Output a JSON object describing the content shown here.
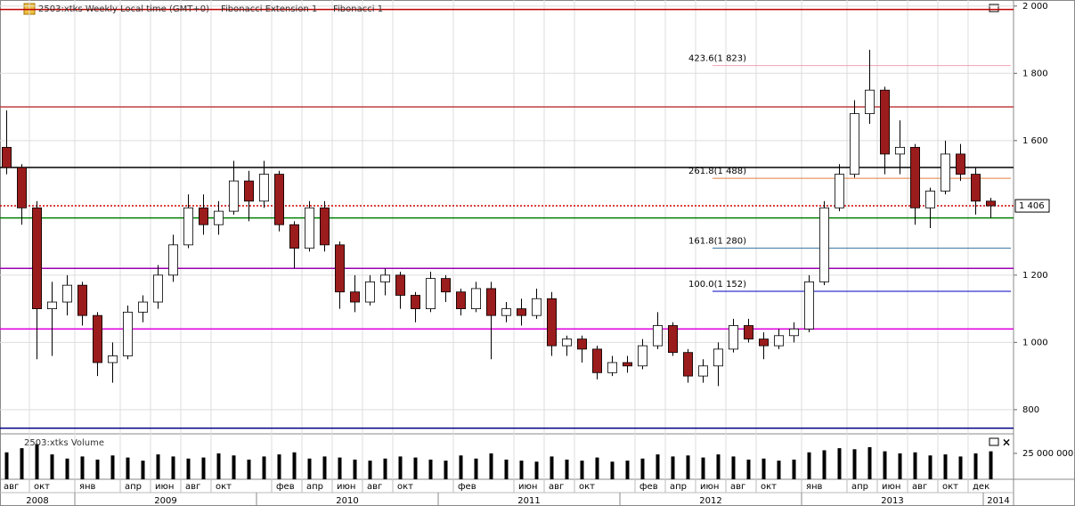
{
  "header": {
    "title": "2503:xtks Weekly Local time (GMT+0)",
    "menus": [
      "Fibonacci Extension 1",
      "Fibonacci 1"
    ]
  },
  "chart_data": {
    "type": "candlestick",
    "x": [
      "2008-08",
      "2008-09",
      "2008-10",
      "2008-11",
      "2008-12",
      "2009-01",
      "2009-02",
      "2009-03",
      "2009-04",
      "2009-05",
      "2009-06",
      "2009-07",
      "2009-08",
      "2009-09",
      "2009-10",
      "2009-11",
      "2009-12",
      "2010-01",
      "2010-02",
      "2010-03",
      "2010-04",
      "2010-05",
      "2010-06",
      "2010-07",
      "2010-08",
      "2010-09",
      "2010-10",
      "2010-11",
      "2010-12",
      "2011-01",
      "2011-02",
      "2011-03",
      "2011-04",
      "2011-05",
      "2011-06",
      "2011-07",
      "2011-08",
      "2011-09",
      "2011-10",
      "2011-11",
      "2011-12",
      "2012-01",
      "2012-02",
      "2012-03",
      "2012-04",
      "2012-05",
      "2012-06",
      "2012-07",
      "2012-08",
      "2012-09",
      "2012-10",
      "2012-11",
      "2012-12",
      "2013-01",
      "2013-02",
      "2013-03",
      "2013-04",
      "2013-05",
      "2013-06",
      "2013-07",
      "2013-08",
      "2013-09",
      "2013-10",
      "2013-11",
      "2013-12",
      "2014-01"
    ],
    "open": [
      1580,
      1520,
      1400,
      1100,
      1120,
      1170,
      1080,
      940,
      960,
      1090,
      1120,
      1200,
      1290,
      1400,
      1350,
      1390,
      1480,
      1420,
      1500,
      1350,
      1280,
      1400,
      1290,
      1150,
      1120,
      1180,
      1200,
      1140,
      1100,
      1190,
      1150,
      1100,
      1160,
      1080,
      1100,
      1080,
      1130,
      990,
      1010,
      980,
      910,
      940,
      930,
      990,
      1050,
      970,
      900,
      930,
      980,
      1050,
      1010,
      990,
      1020,
      1040,
      1180,
      1400,
      1500,
      1680,
      1750,
      1560,
      1580,
      1400,
      1450,
      1560,
      1500,
      1420
    ],
    "high": [
      1690,
      1530,
      1420,
      1180,
      1200,
      1180,
      1090,
      1000,
      1110,
      1140,
      1230,
      1320,
      1440,
      1440,
      1420,
      1540,
      1510,
      1540,
      1510,
      1360,
      1420,
      1420,
      1300,
      1200,
      1200,
      1220,
      1210,
      1150,
      1210,
      1200,
      1160,
      1180,
      1180,
      1120,
      1130,
      1160,
      1150,
      1020,
      1020,
      990,
      960,
      960,
      1010,
      1090,
      1060,
      980,
      950,
      1000,
      1070,
      1070,
      1030,
      1040,
      1060,
      1200,
      1420,
      1530,
      1720,
      1870,
      1760,
      1660,
      1590,
      1460,
      1600,
      1590,
      1520,
      1430
    ],
    "low": [
      1500,
      1350,
      950,
      960,
      1080,
      1050,
      900,
      880,
      950,
      1060,
      1100,
      1180,
      1280,
      1320,
      1320,
      1380,
      1360,
      1400,
      1330,
      1220,
      1270,
      1270,
      1100,
      1090,
      1110,
      1140,
      1100,
      1060,
      1090,
      1120,
      1080,
      1090,
      950,
      1060,
      1050,
      1070,
      960,
      960,
      940,
      890,
      900,
      910,
      920,
      980,
      960,
      880,
      880,
      870,
      970,
      1000,
      950,
      980,
      1000,
      1030,
      1170,
      1390,
      1490,
      1650,
      1500,
      1500,
      1350,
      1340,
      1440,
      1480,
      1380,
      1370
    ],
    "close": [
      1520,
      1400,
      1100,
      1120,
      1170,
      1080,
      940,
      960,
      1090,
      1120,
      1200,
      1290,
      1400,
      1350,
      1390,
      1480,
      1420,
      1500,
      1350,
      1280,
      1400,
      1290,
      1150,
      1120,
      1180,
      1200,
      1140,
      1100,
      1190,
      1150,
      1100,
      1160,
      1080,
      1100,
      1080,
      1130,
      990,
      1010,
      980,
      910,
      940,
      930,
      990,
      1050,
      970,
      900,
      930,
      980,
      1050,
      1010,
      990,
      1020,
      1040,
      1180,
      1400,
      1500,
      1680,
      1750,
      1560,
      1580,
      1400,
      1450,
      1560,
      1500,
      1420,
      1406
    ],
    "up_color": "#ffffff",
    "down_color": "#9b1c1c",
    "xlim": [
      "2008-08",
      "2014-03"
    ],
    "xticks": [
      {
        "value": "2008-08",
        "label": "авг"
      },
      {
        "value": "2008-10",
        "label": "окт"
      },
      {
        "value": "2009-01",
        "label": "янв"
      },
      {
        "value": "2009-04",
        "label": "апр"
      },
      {
        "value": "2009-06",
        "label": "июн"
      },
      {
        "value": "2009-08",
        "label": "авг"
      },
      {
        "value": "2009-10",
        "label": "окт"
      },
      {
        "value": "2010-02",
        "label": "фев"
      },
      {
        "value": "2010-04",
        "label": "апр"
      },
      {
        "value": "2010-06",
        "label": "июн"
      },
      {
        "value": "2010-08",
        "label": "авг"
      },
      {
        "value": "2010-10",
        "label": "окт"
      },
      {
        "value": "2011-02",
        "label": "фев"
      },
      {
        "value": "2011-06",
        "label": "июн"
      },
      {
        "value": "2011-08",
        "label": "авг"
      },
      {
        "value": "2011-10",
        "label": "окт"
      },
      {
        "value": "2012-02",
        "label": "фев"
      },
      {
        "value": "2012-04",
        "label": "апр"
      },
      {
        "value": "2012-06",
        "label": "июн"
      },
      {
        "value": "2012-08",
        "label": "авг"
      },
      {
        "value": "2012-10",
        "label": "окт"
      },
      {
        "value": "2013-01",
        "label": "янв"
      },
      {
        "value": "2013-04",
        "label": "апр"
      },
      {
        "value": "2013-06",
        "label": "июн"
      },
      {
        "value": "2013-08",
        "label": "авг"
      },
      {
        "value": "2013-10",
        "label": "окт"
      },
      {
        "value": "2013-12",
        "label": "дек"
      }
    ],
    "years": [
      2008,
      2009,
      2010,
      2011,
      2012,
      2013,
      2014
    ],
    "ylim": [
      744,
      2018
    ],
    "yticks": [
      {
        "value": 800,
        "label": "800"
      },
      {
        "value": 1000,
        "label": "1 000"
      },
      {
        "value": 1200,
        "label": "1 200"
      },
      {
        "value": 1600,
        "label": "1 600"
      },
      {
        "value": 1800,
        "label": "1 800"
      },
      {
        "value": 2000,
        "label": "2 000"
      }
    ],
    "grid": true,
    "last_price": {
      "value": 1406,
      "label": "1 406"
    },
    "levels": [
      {
        "value": 1990,
        "color": "#c00000"
      },
      {
        "value": 1700,
        "color": "#c04040"
      },
      {
        "value": 1520,
        "color": "#000000"
      },
      {
        "value": 1406,
        "color": "#d00000",
        "dash": true
      },
      {
        "value": 1370,
        "color": "#008000"
      },
      {
        "value": 1220,
        "color": "#9b00b0"
      },
      {
        "value": 1040,
        "color": "#e000e0"
      },
      {
        "value": 745,
        "color": "#000080"
      }
    ],
    "fibonacci": [
      {
        "label": "423.6(1 823)",
        "value": 1823,
        "color": "#f4a0b0"
      },
      {
        "label": "261.8(1 488)",
        "value": 1488,
        "color": "#e08040"
      },
      {
        "label": "161.8(1 280)",
        "value": 1280,
        "color": "#3070a0"
      },
      {
        "label": "100.0(1 152)",
        "value": 1152,
        "color": "#0000c0"
      }
    ],
    "volume": {
      "title": "2503:xtks Volume",
      "ylim": [
        0,
        43000000
      ],
      "yticks": [
        {
          "value": 25000000,
          "label": "25 000 000"
        }
      ],
      "color": "#000000",
      "values": [
        26000000,
        30000000,
        34000000,
        24000000,
        20000000,
        22000000,
        19000000,
        23000000,
        21000000,
        18000000,
        24000000,
        22000000,
        20000000,
        21000000,
        25000000,
        23000000,
        19000000,
        22000000,
        24000000,
        26000000,
        20000000,
        22000000,
        21000000,
        19000000,
        18000000,
        20000000,
        22000000,
        21000000,
        19000000,
        18000000,
        23000000,
        20000000,
        25000000,
        19000000,
        18000000,
        17000000,
        22000000,
        19000000,
        18000000,
        21000000,
        17000000,
        18000000,
        20000000,
        24000000,
        22000000,
        23000000,
        21000000,
        24000000,
        22000000,
        19000000,
        20000000,
        18000000,
        19000000,
        26000000,
        28000000,
        30000000,
        29000000,
        31000000,
        27000000,
        25000000,
        26000000,
        23000000,
        24000000,
        22000000,
        25000000,
        27000000
      ]
    }
  }
}
